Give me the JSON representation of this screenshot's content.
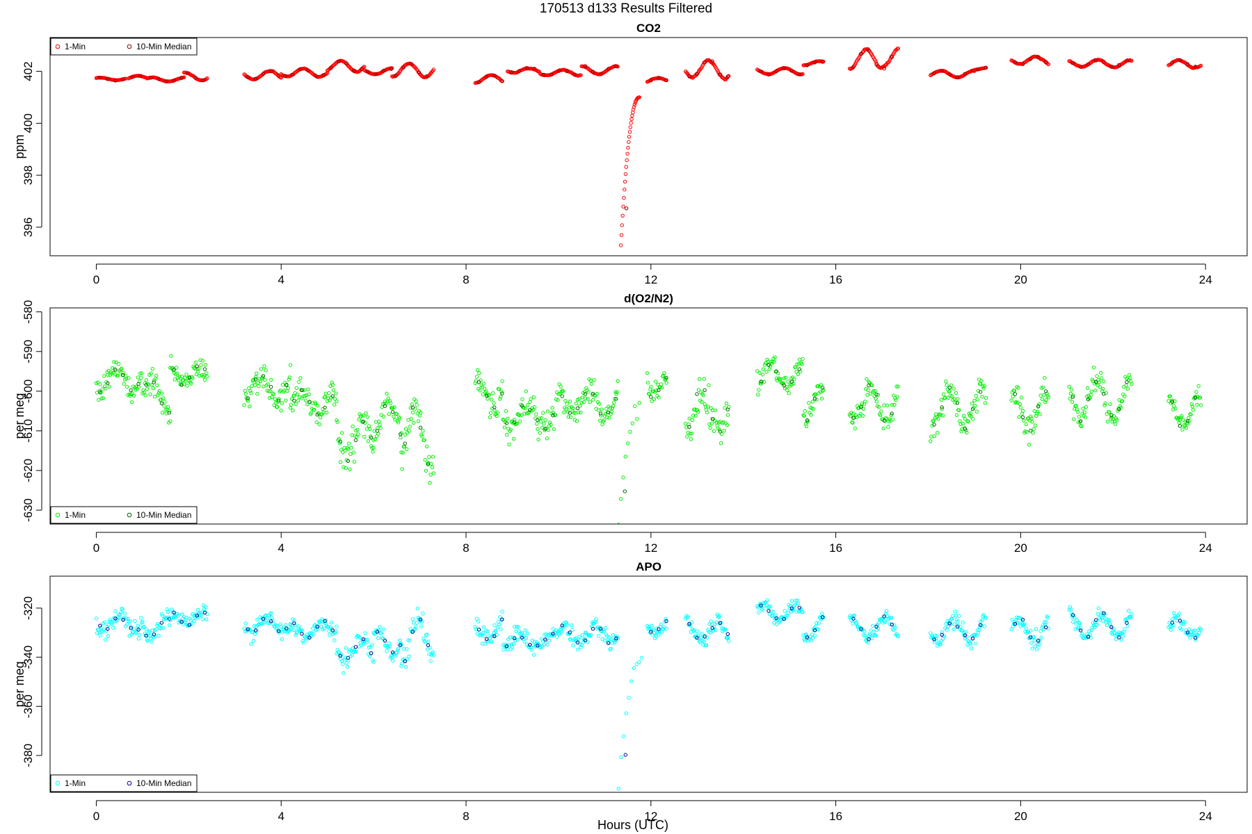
{
  "figure": {
    "title": "170513   d133   Results Filtered",
    "xlabel": "Hours (UTC)"
  },
  "chart_data": [
    {
      "type": "scatter",
      "title": "CO2",
      "ylabel": "ppm",
      "xlim": [
        -1,
        24.9
      ],
      "ylim": [
        394.9,
        403.3
      ],
      "xticks": [
        0,
        4,
        8,
        12,
        16,
        20,
        24
      ],
      "yticks": [
        396,
        398,
        400,
        402
      ],
      "legend": {
        "position": "top-left",
        "entries": [
          "1-Min",
          "10-Min Median"
        ]
      },
      "colors": {
        "one_min": "#ff0000",
        "median": "#8b0000"
      },
      "gaps": [
        [
          2.45,
          3.2
        ],
        [
          7.3,
          8.2
        ],
        [
          11.8,
          11.92
        ],
        [
          12.35,
          12.75
        ],
        [
          13.7,
          14.3
        ],
        [
          15.75,
          16.3
        ],
        [
          17.35,
          18.05
        ],
        [
          19.25,
          19.8
        ],
        [
          20.6,
          21.05
        ],
        [
          22.4,
          23.2
        ]
      ],
      "segments": [
        {
          "x0": 0.0,
          "x1": 0.65,
          "base": 401.7,
          "amp": 0.05,
          "noise": 0.03
        },
        {
          "x0": 0.7,
          "x1": 1.1,
          "base": 401.75,
          "amp": 0.08,
          "noise": 0.04
        },
        {
          "x0": 1.1,
          "x1": 1.9,
          "base": 401.68,
          "amp": 0.08,
          "noise": 0.04
        },
        {
          "x0": 1.9,
          "x1": 2.4,
          "base": 401.8,
          "amp": 0.15,
          "noise": 0.06
        },
        {
          "x0": 3.2,
          "x1": 4.0,
          "base": 401.85,
          "amp": 0.15,
          "noise": 0.06
        },
        {
          "x0": 4.0,
          "x1": 5.0,
          "base": 401.95,
          "amp": 0.15,
          "noise": 0.06
        },
        {
          "x0": 5.0,
          "x1": 5.8,
          "base": 402.2,
          "amp": 0.2,
          "noise": 0.06
        },
        {
          "x0": 5.8,
          "x1": 6.4,
          "base": 402.0,
          "amp": 0.1,
          "noise": 0.05
        },
        {
          "x0": 6.4,
          "x1": 7.3,
          "base": 402.05,
          "amp": 0.25,
          "noise": 0.08
        },
        {
          "x0": 8.2,
          "x1": 8.8,
          "base": 401.7,
          "amp": 0.15,
          "noise": 0.04
        },
        {
          "x0": 8.9,
          "x1": 9.6,
          "base": 402.05,
          "amp": 0.1,
          "noise": 0.05
        },
        {
          "x0": 9.6,
          "x1": 10.5,
          "base": 401.95,
          "amp": 0.1,
          "noise": 0.05
        },
        {
          "x0": 10.5,
          "x1": 11.3,
          "base": 402.05,
          "amp": 0.15,
          "noise": 0.06
        },
        {
          "x0": 11.92,
          "x1": 12.35,
          "base": 401.65,
          "amp": 0.1,
          "noise": 0.05
        },
        {
          "x0": 12.75,
          "x1": 13.7,
          "base": 402.1,
          "amp": 0.35,
          "noise": 0.12
        },
        {
          "x0": 14.3,
          "x1": 15.3,
          "base": 402.0,
          "amp": 0.12,
          "noise": 0.06
        },
        {
          "x0": 15.3,
          "x1": 15.75,
          "base": 402.3,
          "amp": 0.08,
          "noise": 0.04
        },
        {
          "x0": 16.3,
          "x1": 17.35,
          "base": 402.45,
          "amp": 0.35,
          "noise": 0.18
        },
        {
          "x0": 18.05,
          "x1": 19.0,
          "base": 401.9,
          "amp": 0.12,
          "noise": 0.04
        },
        {
          "x0": 19.0,
          "x1": 19.25,
          "base": 402.1,
          "amp": 0.05,
          "noise": 0.03
        },
        {
          "x0": 19.8,
          "x1": 20.6,
          "base": 402.4,
          "amp": 0.15,
          "noise": 0.1
        },
        {
          "x0": 21.05,
          "x1": 22.4,
          "base": 402.3,
          "amp": 0.12,
          "noise": 0.07
        },
        {
          "x0": 23.2,
          "x1": 23.9,
          "base": 402.3,
          "amp": 0.15,
          "noise": 0.08
        }
      ],
      "spike": {
        "x0": 11.35,
        "x1": 11.75,
        "y0": 395.3,
        "y1": 401.0
      }
    },
    {
      "type": "scatter",
      "title": "d(O2/N2)",
      "ylabel": "per meg",
      "xlim": [
        -1,
        24.9
      ],
      "ylim": [
        -633.5,
        -579.0
      ],
      "xticks": [
        0,
        4,
        8,
        12,
        16,
        20,
        24
      ],
      "yticks": [
        -630,
        -620,
        -610,
        -600,
        -590,
        -580
      ],
      "legend": {
        "position": "bottom-left",
        "entries": [
          "1-Min",
          "10-Min Median"
        ]
      },
      "colors": {
        "one_min": "#00ee00",
        "median": "#006400"
      },
      "gaps": [
        [
          2.45,
          3.2
        ],
        [
          7.3,
          8.2
        ],
        [
          11.8,
          11.92
        ],
        [
          12.35,
          12.75
        ],
        [
          13.7,
          14.3
        ],
        [
          15.75,
          16.3
        ],
        [
          17.35,
          18.05
        ],
        [
          19.25,
          19.8
        ],
        [
          20.6,
          21.05
        ],
        [
          22.4,
          23.2
        ]
      ],
      "segments": [
        {
          "x0": 0.0,
          "x1": 1.0,
          "base": -597,
          "amp": 3,
          "noise": 3
        },
        {
          "x0": 1.0,
          "x1": 1.6,
          "base": -601,
          "amp": 4,
          "noise": 3.5
        },
        {
          "x0": 1.6,
          "x1": 2.4,
          "base": -596,
          "amp": 2,
          "noise": 3
        },
        {
          "x0": 3.2,
          "x1": 4.2,
          "base": -599,
          "amp": 3,
          "noise": 3.5
        },
        {
          "x0": 4.2,
          "x1": 5.2,
          "base": -603,
          "amp": 3,
          "noise": 3.5
        },
        {
          "x0": 5.2,
          "x1": 6.0,
          "base": -612,
          "amp": 5,
          "noise": 5
        },
        {
          "x0": 6.0,
          "x1": 6.6,
          "base": -607,
          "amp": 4,
          "noise": 3.5
        },
        {
          "x0": 6.6,
          "x1": 7.3,
          "base": -612,
          "amp": 8,
          "noise": 5
        },
        {
          "x0": 8.2,
          "x1": 8.8,
          "base": -600,
          "amp": 4,
          "noise": 4
        },
        {
          "x0": 8.8,
          "x1": 10.0,
          "base": -606,
          "amp": 3,
          "noise": 4
        },
        {
          "x0": 10.0,
          "x1": 11.3,
          "base": -603,
          "amp": 3,
          "noise": 3.5
        },
        {
          "x0": 11.92,
          "x1": 12.35,
          "base": -598,
          "amp": 3,
          "noise": 3
        },
        {
          "x0": 12.75,
          "x1": 13.7,
          "base": -605,
          "amp": 5,
          "noise": 5
        },
        {
          "x0": 14.3,
          "x1": 15.3,
          "base": -596,
          "amp": 3,
          "noise": 3
        },
        {
          "x0": 15.3,
          "x1": 15.75,
          "base": -603,
          "amp": 4,
          "noise": 4
        },
        {
          "x0": 16.3,
          "x1": 17.35,
          "base": -603,
          "amp": 4,
          "noise": 3.5
        },
        {
          "x0": 18.05,
          "x1": 19.25,
          "base": -604,
          "amp": 5,
          "noise": 4
        },
        {
          "x0": 19.8,
          "x1": 20.6,
          "base": -605,
          "amp": 5,
          "noise": 4
        },
        {
          "x0": 21.05,
          "x1": 22.4,
          "base": -602,
          "amp": 5,
          "noise": 3.5
        },
        {
          "x0": 23.2,
          "x1": 23.9,
          "base": -605,
          "amp": 4,
          "noise": 3
        }
      ],
      "spike": {
        "x0": 11.3,
        "x1": 11.75,
        "y0": -632,
        "y1": -605
      }
    },
    {
      "type": "scatter",
      "title": "APO",
      "ylabel": "per meg",
      "xlim": [
        -1,
        24.9
      ],
      "ylim": [
        -395.0,
        -307.0
      ],
      "xticks": [
        0,
        4,
        8,
        12,
        16,
        20,
        24
      ],
      "yticks": [
        -380,
        -360,
        -340,
        -320
      ],
      "legend": {
        "position": "bottom-left",
        "entries": [
          "1-Min",
          "10-Min Median"
        ]
      },
      "colors": {
        "one_min": "#00ffff",
        "median": "#00008b"
      },
      "gaps": [
        [
          2.45,
          3.2
        ],
        [
          7.3,
          8.2
        ],
        [
          11.8,
          11.92
        ],
        [
          12.35,
          12.75
        ],
        [
          13.7,
          14.3
        ],
        [
          15.75,
          16.3
        ],
        [
          17.35,
          18.05
        ],
        [
          19.25,
          19.8
        ],
        [
          20.6,
          21.05
        ],
        [
          22.4,
          23.2
        ]
      ],
      "segments": [
        {
          "x0": 0.0,
          "x1": 1.0,
          "base": -326,
          "amp": 3,
          "noise": 3.5
        },
        {
          "x0": 1.0,
          "x1": 1.6,
          "base": -328,
          "amp": 4,
          "noise": 4
        },
        {
          "x0": 1.6,
          "x1": 2.4,
          "base": -324,
          "amp": 2,
          "noise": 3
        },
        {
          "x0": 3.2,
          "x1": 4.2,
          "base": -327,
          "amp": 3,
          "noise": 3.5
        },
        {
          "x0": 4.2,
          "x1": 5.2,
          "base": -329,
          "amp": 3,
          "noise": 3.5
        },
        {
          "x0": 5.2,
          "x1": 6.0,
          "base": -337,
          "amp": 4,
          "noise": 4.5
        },
        {
          "x0": 6.0,
          "x1": 6.6,
          "base": -334,
          "amp": 4,
          "noise": 3.5
        },
        {
          "x0": 6.6,
          "x1": 7.3,
          "base": -333,
          "amp": 9,
          "noise": 5
        },
        {
          "x0": 8.2,
          "x1": 8.8,
          "base": -329,
          "amp": 4,
          "noise": 4
        },
        {
          "x0": 8.8,
          "x1": 10.0,
          "base": -333,
          "amp": 3,
          "noise": 4
        },
        {
          "x0": 10.0,
          "x1": 11.3,
          "base": -331,
          "amp": 3,
          "noise": 3.5
        },
        {
          "x0": 11.92,
          "x1": 12.35,
          "base": -327,
          "amp": 3,
          "noise": 3
        },
        {
          "x0": 12.75,
          "x1": 13.7,
          "base": -329,
          "amp": 4,
          "noise": 4
        },
        {
          "x0": 14.3,
          "x1": 15.3,
          "base": -322,
          "amp": 3,
          "noise": 3
        },
        {
          "x0": 15.3,
          "x1": 15.75,
          "base": -328,
          "amp": 4,
          "noise": 4
        },
        {
          "x0": 16.3,
          "x1": 17.35,
          "base": -328,
          "amp": 4,
          "noise": 3.5
        },
        {
          "x0": 18.05,
          "x1": 19.25,
          "base": -329,
          "amp": 4,
          "noise": 4
        },
        {
          "x0": 19.8,
          "x1": 20.6,
          "base": -329,
          "amp": 5,
          "noise": 4
        },
        {
          "x0": 21.05,
          "x1": 22.4,
          "base": -327,
          "amp": 5,
          "noise": 3.5
        },
        {
          "x0": 23.2,
          "x1": 23.9,
          "base": -328,
          "amp": 4,
          "noise": 3
        }
      ],
      "spike": {
        "x0": 11.3,
        "x1": 11.8,
        "y0": -393,
        "y1": -340
      }
    }
  ]
}
